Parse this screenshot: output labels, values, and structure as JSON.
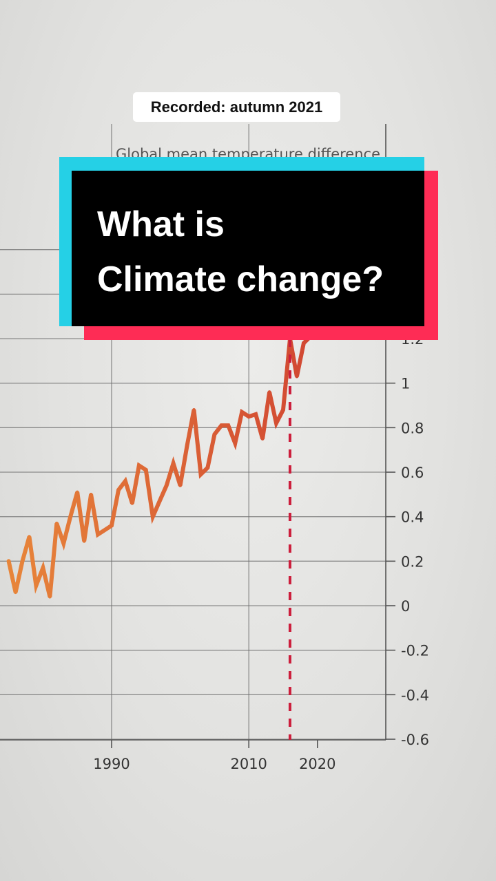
{
  "badge": {
    "text": "Recorded: autumn 2021"
  },
  "title": {
    "line1": "What is",
    "line2": "Climate change?"
  },
  "chart_subtitle_peek": "Global mean temperature difference",
  "colors": {
    "cyan": "#25d0e6",
    "red": "#fe2c55",
    "line_start": "#e8873a",
    "line_end": "#c4222e",
    "marker": "#cc1e3c"
  },
  "chart_data": {
    "type": "line",
    "title": "Global mean temperature difference",
    "x_ticks": [
      1990,
      2010,
      2020
    ],
    "y_ticks": [
      1.2,
      1,
      0.8,
      0.6,
      0.4,
      0.2,
      0,
      -0.2,
      -0.4,
      -0.6
    ],
    "y_tick_labels": [
      "1.2",
      "1",
      "0.8",
      "0.6",
      "0.4",
      "0.2",
      "0",
      "-0.2",
      "-0.4",
      "-0.6"
    ],
    "ylim": [
      -0.6,
      1.2
    ],
    "grid": true,
    "marker_line_x": 2016,
    "series": [
      {
        "x": [
          1975,
          1976,
          1977,
          1978,
          1979,
          1980,
          1981,
          1982,
          1983,
          1984,
          1985,
          1986,
          1987,
          1988,
          1989,
          1990,
          1991,
          1992,
          1993,
          1994,
          1995,
          1996,
          1997,
          1998,
          1999,
          2000,
          2001,
          2002,
          2003,
          2004,
          2005,
          2006,
          2007,
          2008,
          2009,
          2010,
          2011,
          2012,
          2013,
          2014,
          2015,
          2016,
          2017,
          2018,
          2019
        ],
        "y": [
          0.2,
          0.06,
          0.2,
          0.31,
          0.09,
          0.17,
          0.04,
          0.37,
          0.28,
          0.4,
          0.51,
          0.29,
          0.5,
          0.32,
          0.34,
          0.36,
          0.52,
          0.56,
          0.46,
          0.63,
          0.61,
          0.4,
          0.47,
          0.54,
          0.64,
          0.54,
          0.72,
          0.88,
          0.59,
          0.62,
          0.77,
          0.81,
          0.81,
          0.73,
          0.87,
          0.85,
          0.86,
          0.75,
          0.96,
          0.82,
          0.88,
          1.2,
          1.03,
          1.18,
          1.21
        ]
      }
    ]
  }
}
